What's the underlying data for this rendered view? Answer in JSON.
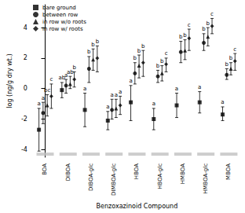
{
  "chart_data": {
    "type": "scatter",
    "x_label": "Benzoxazinoid Compound",
    "y_label": "log (ng/g dry wt.)",
    "categories": [
      "BOA",
      "DIBOA",
      "DIBOA-glc",
      "DIMBOA-glc",
      "HBOA",
      "HBOA-glc",
      "HMBOA",
      "HMBOA-glc",
      "MBOA"
    ],
    "ylim": [
      -4.5,
      5.5
    ],
    "yticks": [
      -4,
      -2,
      0,
      2,
      4
    ],
    "grid": false,
    "legend": "top-left",
    "detection_limits": [
      -4.3,
      -4.3,
      -4.3,
      -4.3,
      -4.3,
      -4.3,
      -4.3,
      -4.3,
      -4.3
    ],
    "series": [
      {
        "name": "bare ground",
        "marker": "square",
        "color": "#000000",
        "values": [
          -2.7,
          -0.1,
          -1.4,
          -2.1,
          -0.9,
          -2.0,
          -1.1,
          -0.9,
          -1.7
        ],
        "lower": [
          -4.1,
          -0.6,
          -2.5,
          -2.7,
          -2.1,
          -2.7,
          -1.9,
          -1.6,
          -2.1
        ],
        "upper": [
          -1.3,
          0.4,
          -0.3,
          -1.5,
          0.2,
          -1.3,
          -0.3,
          -0.2,
          -1.2
        ],
        "letters": [
          "a",
          "ab",
          "a",
          "a",
          "a",
          "a",
          "a",
          "a",
          "a"
        ]
      },
      {
        "name": "between row",
        "marker": "circle",
        "color": "#000000",
        "values": [
          -1.6,
          0.2,
          1.3,
          -1.4,
          1.0,
          0.8,
          2.4,
          3.0,
          0.9
        ],
        "lower": [
          -2.3,
          -0.3,
          0.4,
          -2.0,
          0.3,
          0.4,
          1.7,
          2.5,
          0.6
        ],
        "upper": [
          -0.9,
          0.6,
          2.1,
          -0.7,
          1.7,
          1.2,
          3.1,
          3.6,
          1.3
        ],
        "letters": [
          "a",
          "a",
          "b",
          "a",
          "b",
          "b",
          "b",
          "b",
          "b"
        ]
      },
      {
        "name": "in row w/o roots",
        "marker": "triangle",
        "color": "#000000",
        "values": [
          -1.1,
          0.3,
          1.9,
          -1.3,
          1.5,
          1.0,
          2.5,
          3.4,
          1.3
        ],
        "lower": [
          -1.8,
          0.0,
          1.2,
          -1.9,
          0.7,
          0.5,
          1.9,
          2.8,
          0.9
        ],
        "upper": [
          -0.4,
          0.8,
          2.6,
          -0.7,
          2.2,
          1.5,
          3.2,
          4.0,
          1.7
        ],
        "letters": [
          "bc",
          "ab",
          "b",
          "a",
          "b",
          "b",
          "b",
          "b",
          "b"
        ]
      },
      {
        "name": "in row w/ roots",
        "marker": "diamond",
        "color": "#000000",
        "values": [
          -0.5,
          0.6,
          2.0,
          -1.1,
          1.7,
          1.6,
          3.3,
          4.1,
          1.8
        ],
        "lower": [
          -1.3,
          0.1,
          1.1,
          -1.7,
          0.8,
          1.1,
          2.5,
          3.6,
          1.2
        ],
        "upper": [
          0.3,
          1.1,
          2.8,
          -0.5,
          2.5,
          2.0,
          3.9,
          4.6,
          2.3
        ],
        "letters": [
          "c",
          "b",
          "b",
          "a",
          "b",
          "c",
          "c",
          "c",
          "c"
        ]
      }
    ]
  }
}
